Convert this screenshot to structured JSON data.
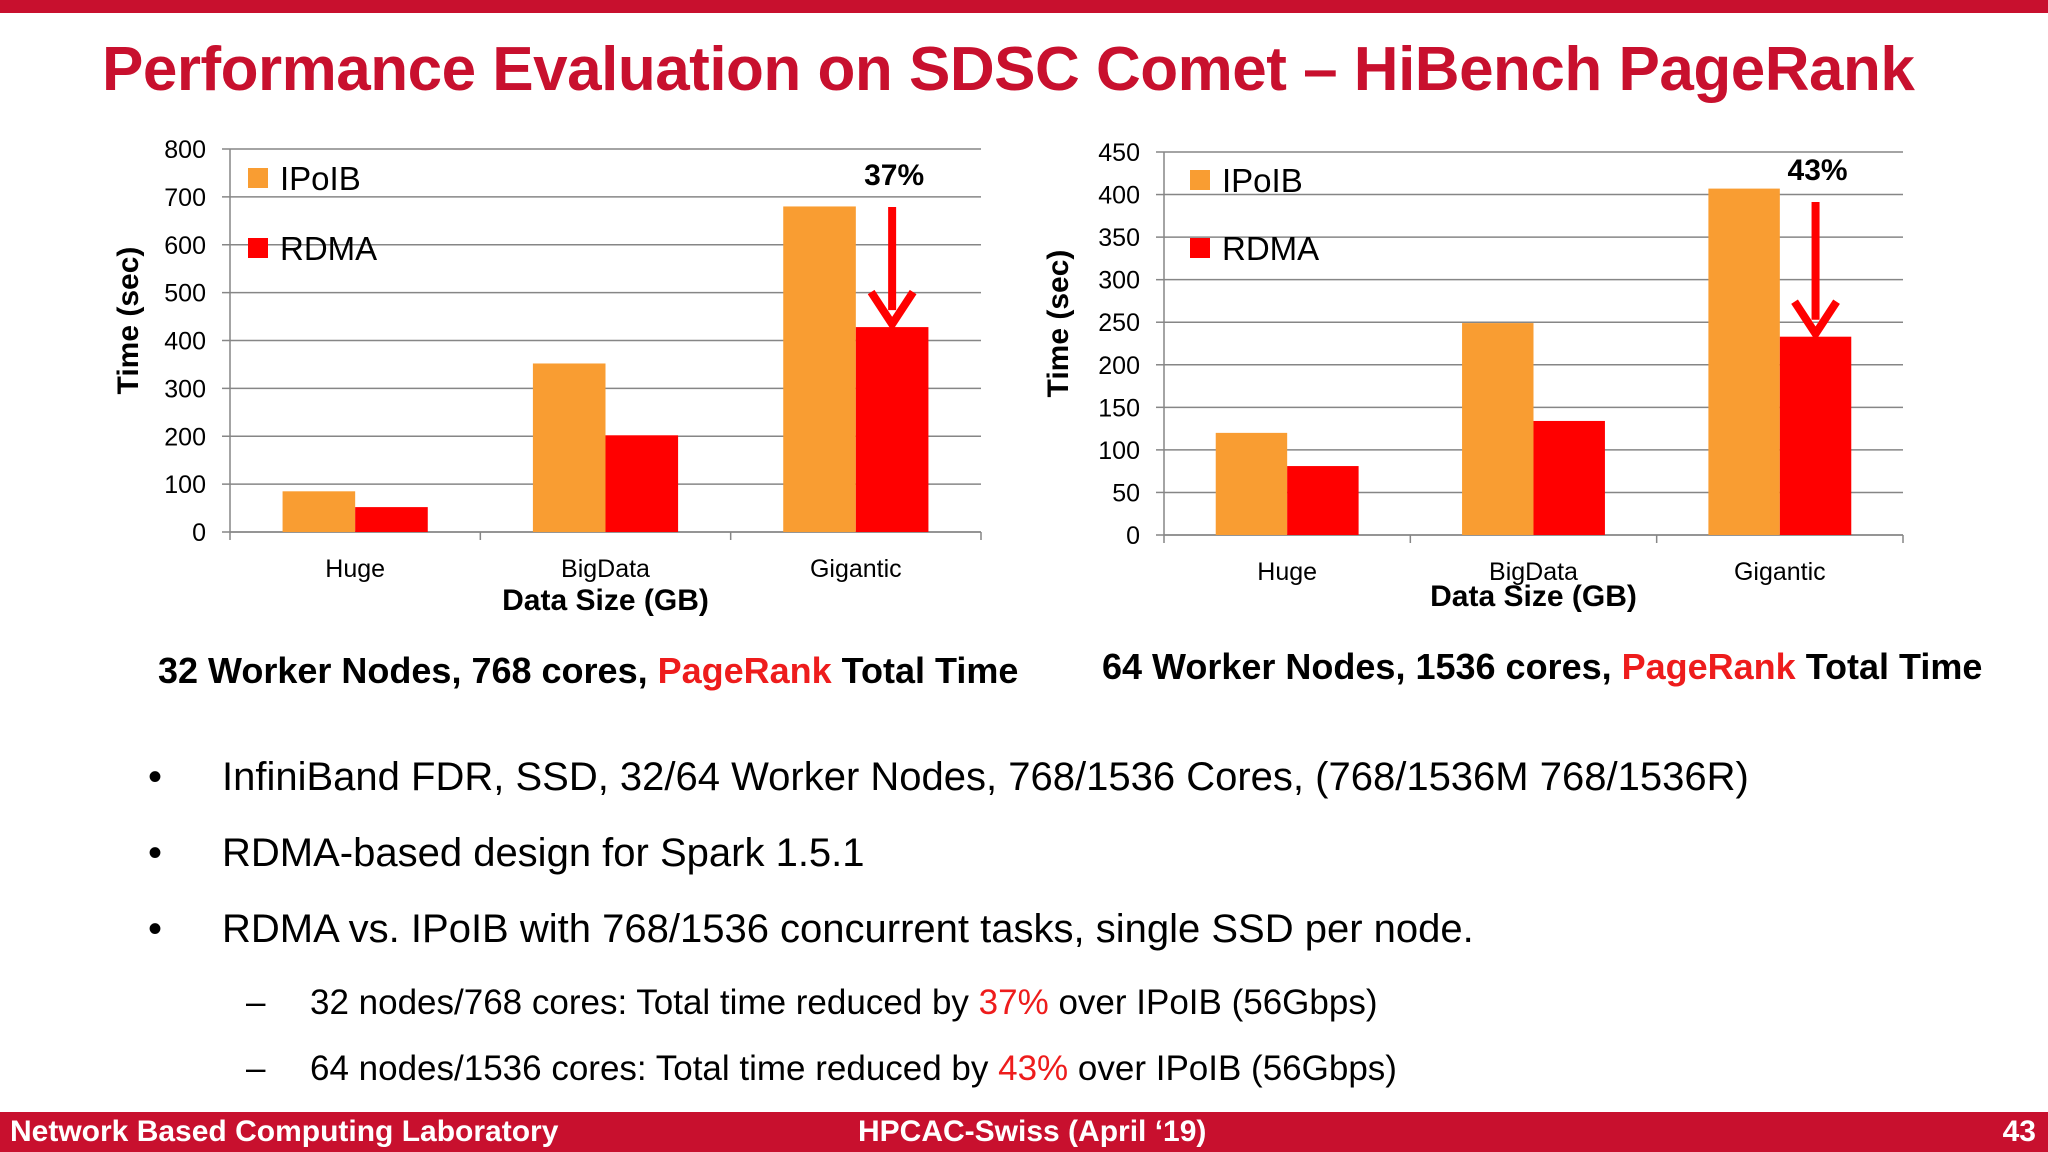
{
  "slide": {
    "title": "Performance Evaluation on SDSC Comet – HiBench PageRank"
  },
  "captions": [
    {
      "pre": "32 Worker Nodes, 768 cores, ",
      "hl": "PageRank",
      "post": " Total Time"
    },
    {
      "pre": "64 Worker Nodes, 1536 cores, ",
      "hl": "PageRank",
      "post": " Total Time"
    }
  ],
  "bullets": [
    "InfiniBand FDR, SSD, 32/64 Worker Nodes, 768/1536 Cores, (768/1536M 768/1536R)",
    "RDMA-based design for Spark 1.5.1",
    "RDMA vs. IPoIB with 768/1536 concurrent tasks, single SSD per node."
  ],
  "bullet_marker": "•",
  "sub_marker": "–",
  "sub_bullets": [
    {
      "pre": "32 nodes/768 cores: Total time reduced by ",
      "hl": "37%",
      "post": " over IPoIB (56Gbps)"
    },
    {
      "pre": "64 nodes/1536 cores: Total time reduced by ",
      "hl": "43%",
      "post": " over IPoIB (56Gbps)"
    }
  ],
  "footer": {
    "left": "Network Based Computing Laboratory",
    "center": "HPCAC-Swiss (April ‘19)",
    "page": "43"
  },
  "colors": {
    "brand": "#c8102e",
    "ipoib": "#f99d32",
    "rdma": "#ff0000",
    "highlight": "#ee1c1c"
  },
  "chart_data": [
    {
      "type": "bar",
      "categories": [
        "Huge",
        "BigData",
        "Gigantic"
      ],
      "series": [
        {
          "name": "IPoIB",
          "values": [
            85,
            352,
            680
          ]
        },
        {
          "name": "RDMA",
          "values": [
            52,
            202,
            428
          ]
        }
      ],
      "xlabel": "Data Size (GB)",
      "ylabel": "Time (sec)",
      "ylim": [
        0,
        800
      ],
      "yticks": [
        0,
        100,
        200,
        300,
        400,
        500,
        600,
        700,
        800
      ],
      "grid": true,
      "legend": "top-left",
      "annotation": {
        "text": "37%",
        "category": "Gigantic",
        "arrow": "IPoIB to RDMA"
      }
    },
    {
      "type": "bar",
      "categories": [
        "Huge",
        "BigData",
        "Gigantic"
      ],
      "series": [
        {
          "name": "IPoIB",
          "values": [
            120,
            249,
            407
          ]
        },
        {
          "name": "RDMA",
          "values": [
            81,
            134,
            233
          ]
        }
      ],
      "xlabel": "Data Size (GB)",
      "ylabel": "Time (sec)",
      "ylim": [
        0,
        450
      ],
      "yticks": [
        0,
        50,
        100,
        150,
        200,
        250,
        300,
        350,
        400,
        450
      ],
      "grid": true,
      "legend": "top-left",
      "annotation": {
        "text": "43%",
        "category": "Gigantic",
        "arrow": "IPoIB to RDMA"
      }
    }
  ]
}
